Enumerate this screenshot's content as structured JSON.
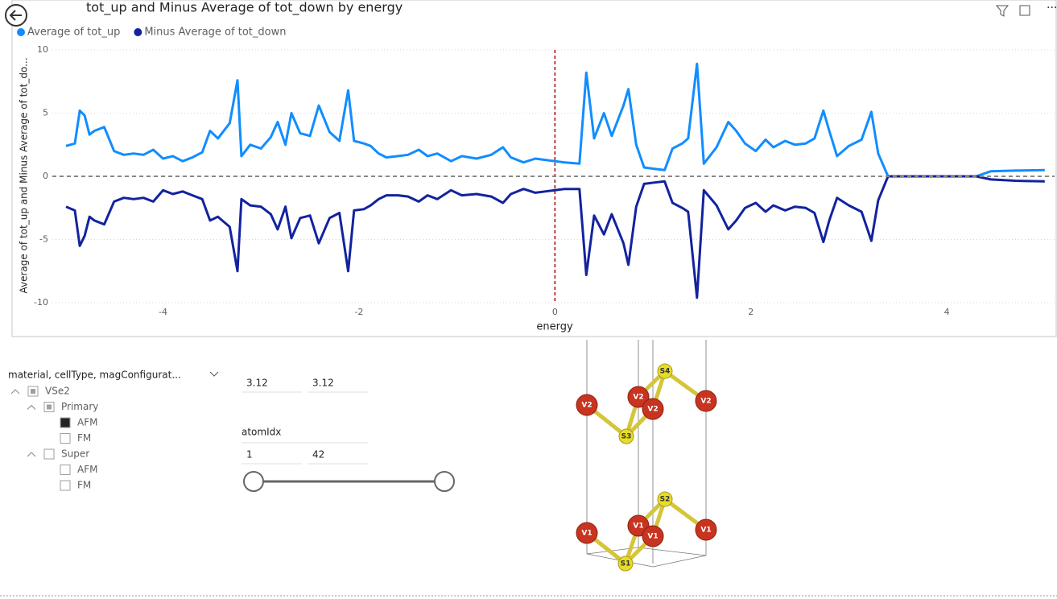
{
  "chart_data": {
    "type": "line",
    "title": "tot_up and Minus Average of tot_down by energy",
    "x_label": "energy",
    "y_label": "Average of tot_up and Minus Average of tot_do...",
    "x": [
      -4.99,
      -4.9,
      -4.85,
      -4.8,
      -4.75,
      -4.7,
      -4.6,
      -4.5,
      -4.4,
      -4.3,
      -4.2,
      -4.1,
      -4.0,
      -3.9,
      -3.8,
      -3.7,
      -3.6,
      -3.52,
      -3.44,
      -3.32,
      -3.24,
      -3.2,
      -3.11,
      -3.0,
      -2.9,
      -2.83,
      -2.75,
      -2.69,
      -2.6,
      -2.5,
      -2.41,
      -2.3,
      -2.2,
      -2.11,
      -2.05,
      -1.95,
      -1.88,
      -1.8,
      -1.72,
      -1.6,
      -1.5,
      -1.39,
      -1.3,
      -1.2,
      -1.06,
      -0.95,
      -0.8,
      -0.65,
      -0.53,
      -0.45,
      -0.32,
      -0.2,
      -0.1,
      0,
      0.1,
      0.25,
      0.32,
      0.4,
      0.5,
      0.58,
      0.7,
      0.75,
      0.83,
      0.91,
      1.01,
      1.12,
      1.2,
      1.3,
      1.36,
      1.45,
      1.52,
      1.65,
      1.77,
      1.85,
      1.94,
      2.05,
      2.15,
      2.23,
      2.35,
      2.45,
      2.56,
      2.65,
      2.74,
      2.8,
      2.88,
      3.0,
      3.13,
      3.23,
      3.3,
      3.4,
      3.6,
      4.0,
      4.3,
      4.45,
      4.7,
      5.0
    ],
    "series": [
      {
        "name": "Average of tot_up",
        "color": "#118DFF",
        "values": [
          2.4,
          2.6,
          5.2,
          4.8,
          3.3,
          3.6,
          3.9,
          2.0,
          1.7,
          1.8,
          1.7,
          2.1,
          1.4,
          1.6,
          1.2,
          1.5,
          1.9,
          3.6,
          3.0,
          4.2,
          7.6,
          1.6,
          2.5,
          2.2,
          3.1,
          4.3,
          2.5,
          5.0,
          3.4,
          3.2,
          5.6,
          3.5,
          2.8,
          6.8,
          2.8,
          2.6,
          2.4,
          1.8,
          1.5,
          1.6,
          1.7,
          2.1,
          1.6,
          1.8,
          1.2,
          1.6,
          1.4,
          1.7,
          2.3,
          1.5,
          1.1,
          1.4,
          1.3,
          1.2,
          1.1,
          1.0,
          8.2,
          3.0,
          5.0,
          3.2,
          5.6,
          6.9,
          2.5,
          0.7,
          0.6,
          0.5,
          2.2,
          2.6,
          3.0,
          8.9,
          1.0,
          2.3,
          4.3,
          3.6,
          2.6,
          2.0,
          2.9,
          2.3,
          2.8,
          2.5,
          2.6,
          3.0,
          5.2,
          3.6,
          1.6,
          2.4,
          2.9,
          5.1,
          1.8,
          0,
          0,
          0,
          0,
          0.4,
          0.45,
          0.5
        ]
      },
      {
        "name": "Minus Average of tot_down",
        "color": "#12239E",
        "values": [
          -2.4,
          -2.7,
          -5.5,
          -4.7,
          -3.2,
          -3.5,
          -3.8,
          -2.0,
          -1.7,
          -1.8,
          -1.7,
          -2.0,
          -1.1,
          -1.4,
          -1.2,
          -1.5,
          -1.8,
          -3.5,
          -3.2,
          -4.0,
          -7.5,
          -1.8,
          -2.3,
          -2.4,
          -3.0,
          -4.2,
          -2.4,
          -4.9,
          -3.3,
          -3.1,
          -5.3,
          -3.3,
          -2.9,
          -7.5,
          -2.7,
          -2.6,
          -2.3,
          -1.8,
          -1.5,
          -1.5,
          -1.6,
          -2.0,
          -1.5,
          -1.8,
          -1.1,
          -1.5,
          -1.4,
          -1.6,
          -2.1,
          -1.4,
          -1.0,
          -1.3,
          -1.2,
          -1.1,
          -1.0,
          -1.0,
          -7.8,
          -3.1,
          -4.6,
          -3.0,
          -5.3,
          -7.0,
          -2.4,
          -0.6,
          -0.5,
          -0.4,
          -2.1,
          -2.5,
          -2.8,
          -9.6,
          -1.1,
          -2.3,
          -4.2,
          -3.5,
          -2.5,
          -2.1,
          -2.8,
          -2.3,
          -2.7,
          -2.4,
          -2.5,
          -2.9,
          -5.2,
          -3.5,
          -1.7,
          -2.3,
          -2.8,
          -5.1,
          -1.9,
          0,
          0,
          0,
          0,
          -0.25,
          -0.35,
          -0.4
        ]
      }
    ],
    "xlim": [
      -5.13,
      5.1
    ],
    "xticks": [
      -4,
      -2,
      0,
      2,
      4
    ],
    "ylim": [
      -10,
      10
    ],
    "yticks": [
      -10,
      -5,
      0,
      5,
      10
    ],
    "grid": true,
    "legend": "top-left",
    "reference_lines": {
      "x": 0,
      "x_color": "#b5413f",
      "y": 0,
      "y_color": "#888888"
    }
  },
  "slicer": {
    "title": "material, cellType, magConfigurat...",
    "tree": [
      {
        "label": "VSe2",
        "level": 0,
        "state": "partial",
        "expanded": true
      },
      {
        "label": "Primary",
        "level": 1,
        "state": "partial",
        "expanded": true
      },
      {
        "label": "AFM",
        "level": 2,
        "state": "checked"
      },
      {
        "label": "FM",
        "level": 2,
        "state": "empty"
      },
      {
        "label": "Super",
        "level": 1,
        "state": "empty",
        "expanded": true
      },
      {
        "label": "AFM",
        "level": 2,
        "state": "empty"
      },
      {
        "label": "FM",
        "level": 2,
        "state": "empty"
      }
    ]
  },
  "range_slicer": {
    "min": "3.12",
    "max": "3.12"
  },
  "atom_slicer": {
    "title": "atomIdx",
    "min": "1",
    "max": "42"
  },
  "structure": {
    "atoms": [
      "S4",
      "V2",
      "V2",
      "V2",
      "V2",
      "S3",
      "S2",
      "V1",
      "V1",
      "V1",
      "V1",
      "S1"
    ]
  }
}
